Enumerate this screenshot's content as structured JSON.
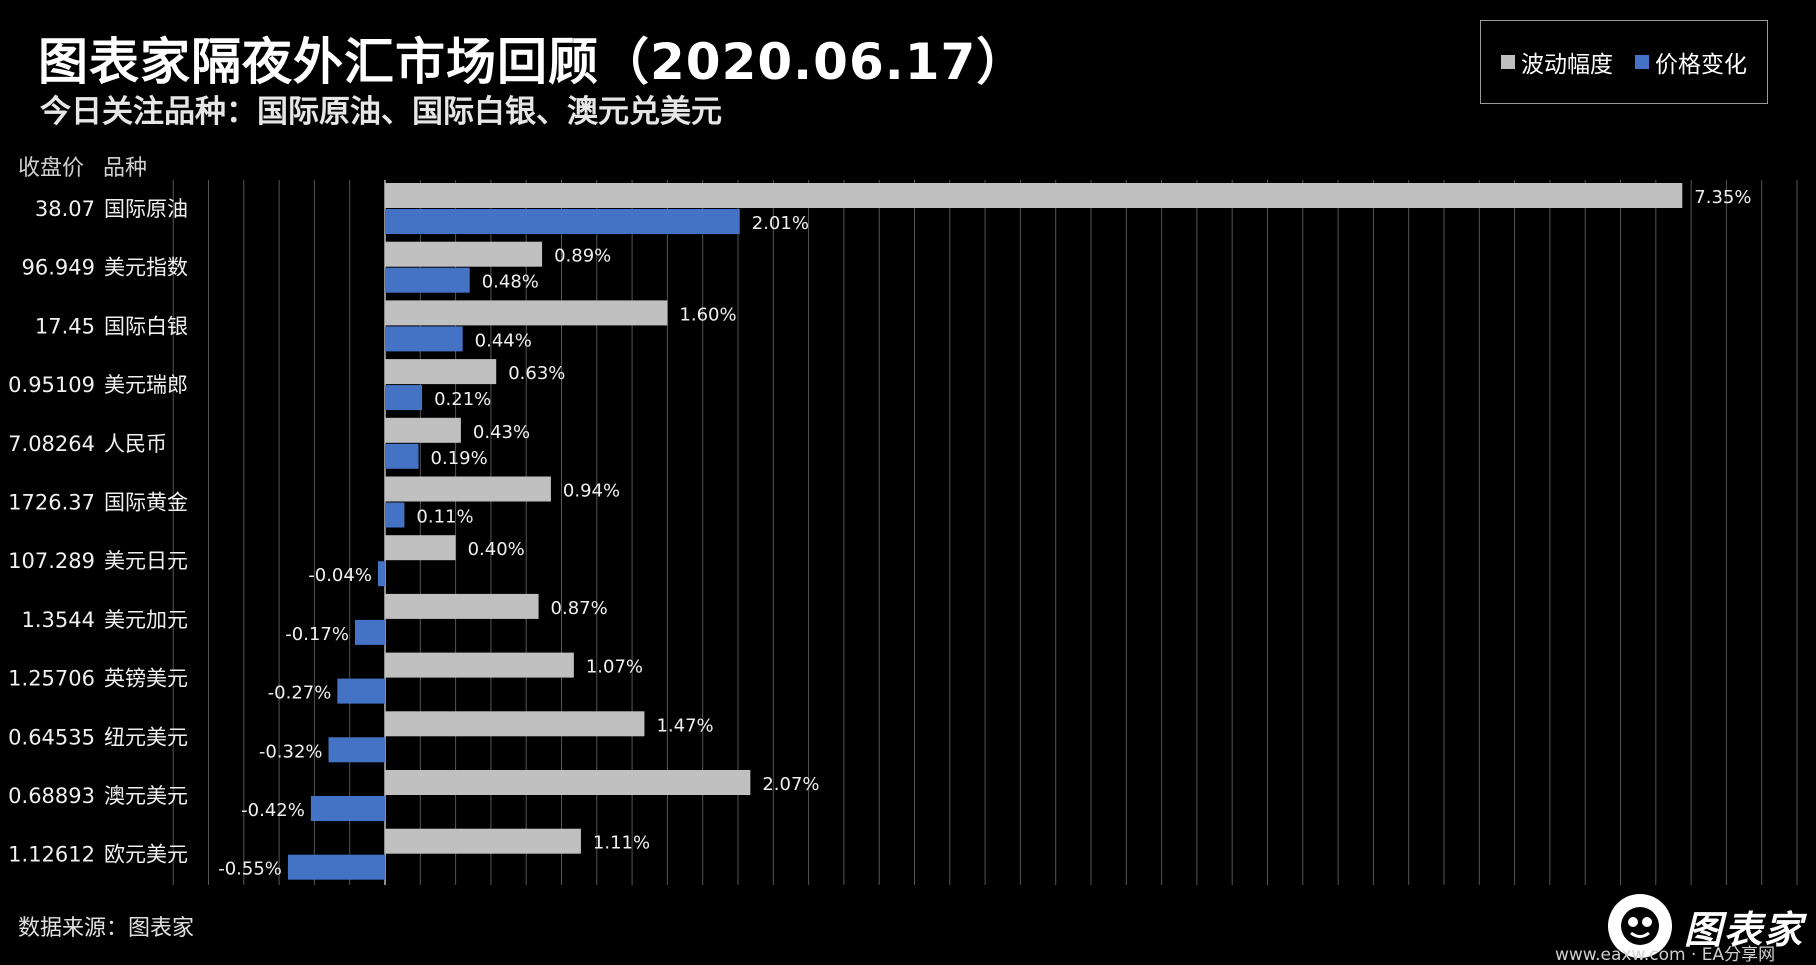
{
  "title": "图表家隔夜外汇市场回顾（2020.06.17）",
  "subtitle": "今日关注品种：国际原油、国际白银、澳元兑美元",
  "column_headers": {
    "price": "收盘价",
    "name": "品种"
  },
  "footer": "数据来源：图表家",
  "logo_text": "图表家",
  "watermark": "www.eaxw.com · EA分享网",
  "colors": {
    "volatility": "#c0c0c0",
    "price_change": "#4472c4",
    "background": "#000000"
  },
  "chart_data": {
    "type": "bar",
    "orientation": "horizontal",
    "title": "图表家隔夜外汇市场回顾（2020.06.17）",
    "legend_position": "top-right",
    "grid": true,
    "xlim": [
      -1.3,
      8.1
    ],
    "categories": [
      "国际原油",
      "美元指数",
      "国际白银",
      "美元瑞郎",
      "人民币",
      "国际黄金",
      "美元日元",
      "美元加元",
      "英镑美元",
      "纽元美元",
      "澳元美元",
      "欧元美元"
    ],
    "close_prices": [
      "38.07",
      "96.949",
      "17.45",
      "0.95109",
      "7.08264",
      "1726.37",
      "107.289",
      "1.3544",
      "1.25706",
      "0.64535",
      "0.68893",
      "1.12612"
    ],
    "series": [
      {
        "name": "波动幅度",
        "values": [
          7.35,
          0.89,
          1.6,
          0.63,
          0.43,
          0.94,
          0.4,
          0.87,
          1.07,
          1.47,
          2.07,
          1.11
        ],
        "labels": [
          "7.35%",
          "0.89%",
          "1.60%",
          "0.63%",
          "0.43%",
          "0.94%",
          "0.40%",
          "0.87%",
          "1.07%",
          "1.47%",
          "2.07%",
          "1.11%"
        ]
      },
      {
        "name": "价格变化",
        "values": [
          2.01,
          0.48,
          0.44,
          0.21,
          0.19,
          0.11,
          -0.04,
          -0.17,
          -0.27,
          -0.32,
          -0.42,
          -0.55
        ],
        "labels": [
          "2.01%",
          "0.48%",
          "0.44%",
          "0.21%",
          "0.19%",
          "0.11%",
          "-0.04%",
          "-0.17%",
          "-0.27%",
          "-0.32%",
          "-0.42%",
          "-0.55%"
        ]
      }
    ]
  }
}
